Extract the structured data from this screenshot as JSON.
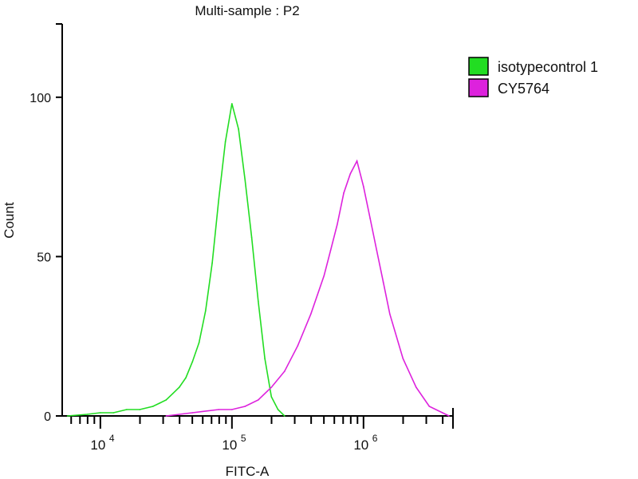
{
  "chart_data": {
    "type": "line",
    "title": "Multi-sample : P2",
    "xlabel": "FITC-A",
    "ylabel": "Count",
    "xscale": "log",
    "xlim_log10": [
      3.71,
      6.68
    ],
    "ylim": [
      0,
      123
    ],
    "x_ticks": [
      {
        "base": "10",
        "exp": "4",
        "log": 4
      },
      {
        "base": "10",
        "exp": "5",
        "log": 5
      },
      {
        "base": "10",
        "exp": "6",
        "log": 6
      }
    ],
    "y_ticks": [
      {
        "label": "0",
        "value": 0
      },
      {
        "label": "50",
        "value": 50
      },
      {
        "label": "100",
        "value": 100
      }
    ],
    "grid": false,
    "legend_position": "right",
    "series": [
      {
        "name": "isotypecontrol 1",
        "color": "#22dd22",
        "x_log10": [
          3.75,
          3.9,
          4.0,
          4.1,
          4.2,
          4.3,
          4.4,
          4.45,
          4.5,
          4.55,
          4.6,
          4.65,
          4.7,
          4.75,
          4.8,
          4.85,
          4.9,
          4.95,
          5.0,
          5.05,
          5.1,
          5.15,
          5.2,
          5.25,
          5.3,
          5.35,
          5.4
        ],
        "values": [
          0,
          0.5,
          1,
          1,
          2,
          2,
          3,
          4,
          5,
          7,
          9,
          12,
          17,
          23,
          33,
          48,
          68,
          86,
          98,
          90,
          74,
          56,
          36,
          18,
          6,
          2,
          0
        ]
      },
      {
        "name": "CY5764",
        "color": "#dd22dd",
        "x_log10": [
          4.5,
          4.7,
          4.9,
          5.0,
          5.1,
          5.2,
          5.3,
          5.4,
          5.5,
          5.6,
          5.7,
          5.75,
          5.8,
          5.85,
          5.9,
          5.95,
          6.0,
          6.05,
          6.1,
          6.15,
          6.2,
          6.3,
          6.4,
          6.5,
          6.6,
          6.65
        ],
        "values": [
          0,
          1,
          2,
          2,
          3,
          5,
          9,
          14,
          22,
          32,
          44,
          52,
          60,
          70,
          76,
          80,
          72,
          62,
          52,
          42,
          32,
          18,
          9,
          3,
          1,
          0
        ]
      }
    ]
  }
}
